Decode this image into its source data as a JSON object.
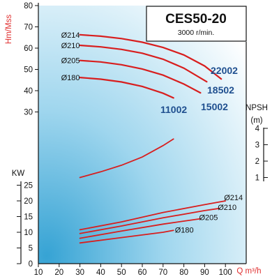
{
  "chart_data": {
    "type": "line",
    "title": "CES50-20",
    "subtitle": "3000 r/min.",
    "xlabel": "Q m³/h",
    "xlim": [
      10,
      100
    ],
    "x_ticks": [
      "10",
      "20",
      "30",
      "40",
      "50",
      "60",
      "70",
      "80",
      "90",
      "100"
    ],
    "head": {
      "ylabel": "Hm/Mss",
      "ylim": [
        30,
        80
      ],
      "y_ticks": [
        "80",
        "70",
        "60",
        "50",
        "40",
        "30"
      ],
      "series": [
        {
          "name": "Ø214",
          "x": [
            30,
            40,
            50,
            60,
            70,
            80,
            90,
            98
          ],
          "y": [
            66.3,
            65.6,
            64.5,
            62.8,
            60.3,
            56.8,
            51.6,
            45.5
          ]
        },
        {
          "name": "Ø210",
          "x": [
            30,
            40,
            50,
            60,
            70,
            80,
            91
          ],
          "y": [
            61.3,
            60.6,
            59.4,
            57.6,
            54.8,
            50.6,
            44.2
          ]
        },
        {
          "name": "Ø205",
          "x": [
            30,
            40,
            50,
            60,
            70,
            80,
            88
          ],
          "y": [
            54.2,
            53.5,
            52.2,
            50.2,
            47.3,
            43.1,
            39.0
          ]
        },
        {
          "name": "Ø180",
          "x": [
            30,
            40,
            50,
            60,
            70,
            75
          ],
          "y": [
            46.2,
            45.4,
            44.1,
            42.0,
            38.8,
            36.6
          ]
        }
      ],
      "flow_labels": [
        "22002",
        "18502",
        "15002",
        "11002"
      ]
    },
    "npsh": {
      "ylabel": "NPSH",
      "unit": "(m)",
      "y_ticks": [
        "4",
        "3",
        "2",
        "1"
      ],
      "series": [
        {
          "name": "NPSH",
          "x": [
            30,
            40,
            50,
            60,
            70,
            75
          ],
          "y": [
            1.0,
            1.35,
            1.75,
            2.25,
            2.95,
            3.35
          ]
        }
      ]
    },
    "power": {
      "ylabel": "KW",
      "ylim": [
        0,
        25
      ],
      "y_ticks": [
        "25",
        "20",
        "15",
        "10",
        "5",
        "0"
      ],
      "series": [
        {
          "name": "Ø214",
          "x": [
            30,
            50,
            70,
            90,
            100
          ],
          "y": [
            10.8,
            13.3,
            16.3,
            18.8,
            20.0
          ]
        },
        {
          "name": "Ø210",
          "x": [
            30,
            50,
            70,
            90,
            97
          ],
          "y": [
            9.6,
            12.0,
            14.6,
            16.9,
            17.6
          ]
        },
        {
          "name": "Ø205",
          "x": [
            30,
            50,
            70,
            88
          ],
          "y": [
            8.1,
            10.4,
            12.6,
            14.3
          ]
        },
        {
          "name": "Ø180",
          "x": [
            30,
            50,
            70,
            75
          ],
          "y": [
            6.6,
            8.3,
            10.0,
            10.6
          ]
        }
      ]
    },
    "grid": false,
    "colors": {
      "curve": "#d81e1e",
      "flow_label": "#1f4f8f",
      "axis_label": "#e03030",
      "bg_light": "#ffffff",
      "bg_dark": "#3aa7d6"
    }
  }
}
